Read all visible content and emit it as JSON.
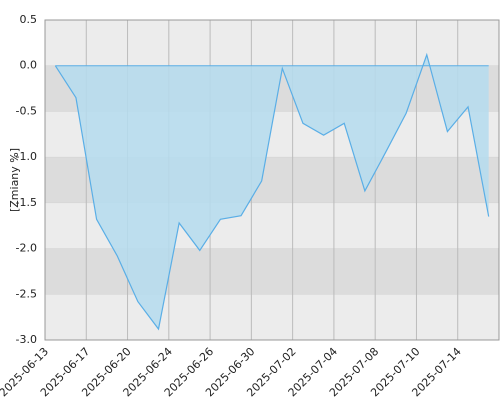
{
  "chart_data": {
    "type": "area",
    "y_label": "[Zmiany %]",
    "values": [
      0.0,
      -0.35,
      -1.68,
      -2.08,
      -2.58,
      -2.88,
      -1.72,
      -2.02,
      -1.68,
      -1.64,
      -1.26,
      -0.03,
      -0.63,
      -0.76,
      -0.63,
      -1.37,
      -0.95,
      -0.52,
      0.12,
      -0.72,
      -0.45,
      -1.65
    ],
    "color": "#5aaee6",
    "fill": "#b5dcee",
    "xlim": [
      -0.5,
      21.5
    ],
    "xticks": [
      {
        "value": -0.5,
        "label": "2025-06-13"
      },
      {
        "value": 1.5,
        "label": "2025-06-17"
      },
      {
        "value": 3.5,
        "label": "2025-06-20"
      },
      {
        "value": 5.5,
        "label": "2025-06-24"
      },
      {
        "value": 7.5,
        "label": "2025-06-26"
      },
      {
        "value": 9.5,
        "label": "2025-06-30"
      },
      {
        "value": 11.5,
        "label": "2025-07-02"
      },
      {
        "value": 13.5,
        "label": "2025-07-04"
      },
      {
        "value": 15.5,
        "label": "2025-07-08"
      },
      {
        "value": 17.5,
        "label": "2025-07-10"
      },
      {
        "value": 19.5,
        "label": "2025-07-14"
      }
    ],
    "ylim": [
      -3.0,
      0.5
    ],
    "yticks": [
      0.5,
      {
        "value": 0,
        "label": "0.0"
      },
      -0.5,
      {
        "value": -1,
        "label": "-1.0"
      },
      -1.5,
      {
        "value": -2,
        "label": "-2.0"
      },
      -2.5,
      {
        "value": -3,
        "label": "-3.0"
      }
    ],
    "grid": true
  }
}
